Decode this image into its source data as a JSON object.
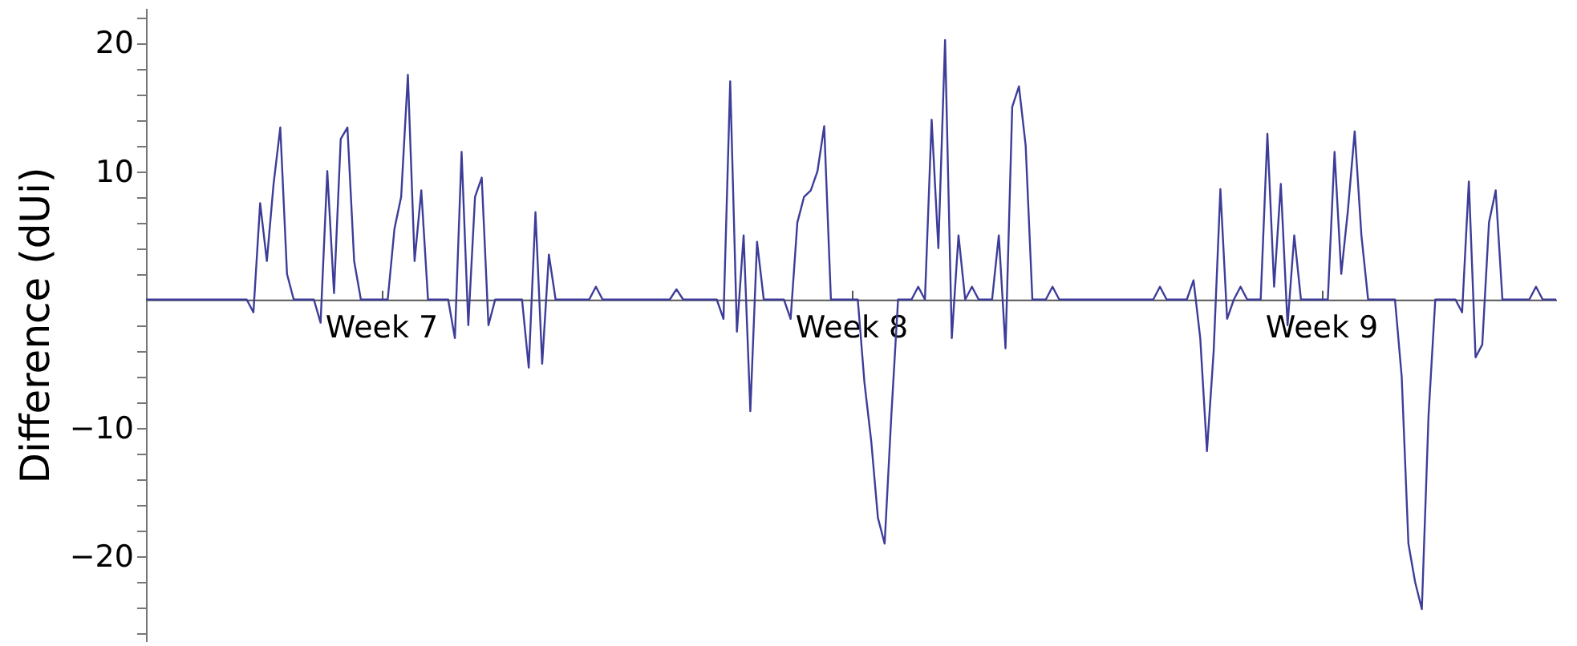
{
  "chart_data": {
    "type": "line",
    "ylabel": "Difference (dUi)",
    "color": "#3d3d99",
    "ylim": [
      -26.6,
      22.7
    ],
    "yticks": [
      {
        "value": -20,
        "label": "−20"
      },
      {
        "value": -10,
        "label": "−10"
      },
      10,
      20,
      {
        "value": -26,
        "label": null
      },
      {
        "value": -24,
        "label": null
      },
      {
        "value": -22,
        "label": null
      },
      {
        "value": -18,
        "label": null
      },
      {
        "value": -16,
        "label": null
      },
      {
        "value": -14,
        "label": null
      },
      {
        "value": -12,
        "label": null
      },
      {
        "value": -8,
        "label": null
      },
      {
        "value": -6,
        "label": null
      },
      {
        "value": -4,
        "label": null
      },
      {
        "value": -2,
        "label": null
      },
      {
        "value": 2,
        "label": null
      },
      {
        "value": 4,
        "label": null
      },
      {
        "value": 6,
        "label": null
      },
      {
        "value": 8,
        "label": null
      },
      {
        "value": 12,
        "label": null
      },
      {
        "value": 14,
        "label": null
      },
      {
        "value": 16,
        "label": null
      },
      {
        "value": 18,
        "label": null
      },
      {
        "value": 22,
        "label": null
      }
    ],
    "categories": [
      null,
      null,
      null,
      null,
      null,
      null,
      null,
      null,
      null,
      null,
      null,
      null,
      null,
      null,
      null,
      null,
      null,
      null,
      null,
      null,
      null,
      null,
      null,
      null,
      null,
      null,
      null,
      null,
      null,
      null,
      null,
      null,
      null,
      null,
      null,
      "Week 7",
      null,
      null,
      null,
      null,
      null,
      null,
      null,
      null,
      null,
      null,
      null,
      null,
      null,
      null,
      null,
      null,
      null,
      null,
      null,
      null,
      null,
      null,
      null,
      null,
      null,
      null,
      null,
      null,
      null,
      null,
      null,
      null,
      null,
      null,
      null,
      null,
      null,
      null,
      null,
      null,
      null,
      null,
      null,
      null,
      null,
      null,
      null,
      null,
      null,
      null,
      null,
      null,
      null,
      null,
      null,
      null,
      null,
      null,
      null,
      null,
      null,
      null,
      null,
      null,
      null,
      null,
      null,
      null,
      null,
      "Week 8",
      null,
      null,
      null,
      null,
      null,
      null,
      null,
      null,
      null,
      null,
      null,
      null,
      null,
      null,
      null,
      null,
      null,
      null,
      null,
      null,
      null,
      null,
      null,
      null,
      null,
      null,
      null,
      null,
      null,
      null,
      null,
      null,
      null,
      null,
      null,
      null,
      null,
      null,
      null,
      null,
      null,
      null,
      null,
      null,
      null,
      null,
      null,
      null,
      null,
      null,
      null,
      null,
      null,
      null,
      null,
      null,
      null,
      null,
      null,
      null,
      null,
      null,
      null,
      null,
      null,
      null,
      null,
      null,
      null,
      "Week 9",
      null,
      null,
      null,
      null,
      null,
      null,
      null,
      null,
      null,
      null,
      null,
      null,
      null,
      null,
      null,
      null,
      null,
      null,
      null,
      null,
      null,
      null,
      null,
      null,
      null,
      null,
      null,
      null,
      null,
      null,
      null,
      null,
      null,
      null,
      null
    ],
    "values": [
      0,
      0,
      0,
      0,
      0,
      0,
      0,
      0,
      0,
      0,
      0,
      0,
      0,
      0,
      0,
      0,
      -1,
      7.5,
      3,
      9,
      13.4,
      2,
      0,
      0,
      0,
      0,
      -1.8,
      10,
      0.5,
      12.5,
      13.4,
      3,
      0,
      0,
      0,
      0,
      0,
      5.5,
      8,
      17.5,
      3,
      8.5,
      0,
      0,
      0,
      0,
      -3,
      11.5,
      -2,
      8,
      9.5,
      -2,
      0,
      0,
      0,
      0,
      0,
      -5.3,
      6.8,
      -5,
      3.5,
      0,
      0,
      0,
      0,
      0,
      0,
      1,
      0,
      0,
      0,
      0,
      0,
      0,
      0,
      0,
      0,
      0,
      0,
      0.8,
      0,
      0,
      0,
      0,
      0,
      0,
      -1.5,
      17,
      -2.5,
      5,
      -8.7,
      4.5,
      0,
      0,
      0,
      0,
      -1.5,
      6,
      8,
      8.5,
      10,
      13.5,
      0,
      0,
      0,
      0,
      0,
      -6.5,
      -11,
      -17,
      -19,
      -9,
      0,
      0,
      0,
      1,
      0,
      14,
      4,
      20.2,
      -3,
      5,
      0,
      1,
      0,
      0,
      0,
      5,
      -3.8,
      15,
      16.6,
      12,
      0,
      0,
      0,
      1,
      0,
      0,
      0,
      0,
      0,
      0,
      0,
      0,
      0,
      0,
      0,
      0,
      0,
      0,
      0,
      1,
      0,
      0,
      0,
      0,
      1.5,
      -3,
      -11.8,
      -4,
      8.6,
      -1.5,
      0,
      1,
      0,
      0,
      0,
      12.9,
      1,
      9,
      -2,
      5,
      0,
      0,
      0,
      0,
      0,
      11.5,
      2,
      7,
      13.1,
      5,
      0,
      0,
      0,
      0,
      0,
      -6,
      -19,
      -22,
      -24.1,
      -9,
      0,
      0,
      0,
      0,
      -1,
      9.2,
      -4.5,
      -3.5,
      6,
      8.5,
      0,
      0,
      0,
      0,
      0,
      1,
      0,
      0,
      0
    ]
  }
}
